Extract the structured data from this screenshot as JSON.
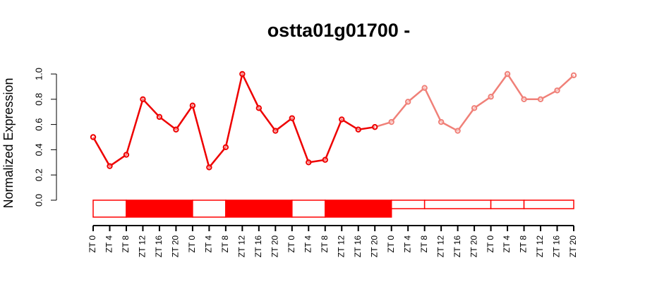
{
  "chart_data": {
    "type": "line",
    "title": "ostta01g01700 -",
    "ylabel": "Normalized Expression",
    "categories": [
      "ZT 0",
      "ZT 4",
      "ZT 8",
      "ZT 12",
      "ZT 16",
      "ZT 20",
      "ZT 0",
      "ZT 4",
      "ZT 8",
      "ZT 12",
      "ZT 16",
      "ZT 20",
      "ZT 0",
      "ZT 4",
      "ZT 8",
      "ZT 12",
      "ZT 16",
      "ZT 20",
      "ZT 0",
      "ZT 4",
      "ZT 8",
      "ZT 12",
      "ZT 16",
      "ZT 20",
      "ZT 0",
      "ZT 4",
      "ZT 8",
      "ZT 12",
      "ZT 16",
      "ZT 20"
    ],
    "series": [
      {
        "color": "#ee0000",
        "values": [
          0.5,
          0.27,
          0.36,
          0.8,
          0.66,
          0.56,
          0.75,
          0.26,
          0.42,
          1.0,
          0.73,
          0.55,
          0.65,
          0.3,
          0.32,
          0.64,
          0.56,
          0.58,
          null,
          null,
          null,
          null,
          null,
          null,
          null,
          null,
          null,
          null,
          null,
          null
        ]
      },
      {
        "color": "#f08078",
        "values": [
          null,
          null,
          null,
          null,
          null,
          null,
          null,
          null,
          null,
          null,
          null,
          null,
          null,
          null,
          null,
          null,
          null,
          0.58,
          0.62,
          0.78,
          0.89,
          0.62,
          0.55,
          0.73,
          0.82,
          1.0,
          0.8,
          0.8,
          0.87,
          0.99
        ]
      }
    ],
    "ylim": [
      0,
      1
    ],
    "yticks": [
      {
        "value": 0,
        "label": "0.0"
      },
      {
        "value": 0.2,
        "label": "0.2"
      },
      {
        "value": 0.4,
        "label": "0.4"
      },
      {
        "value": 0.6,
        "label": "0.6"
      },
      {
        "value": 0.8,
        "label": "0.8"
      },
      {
        "value": 1,
        "label": "1.0"
      }
    ]
  }
}
